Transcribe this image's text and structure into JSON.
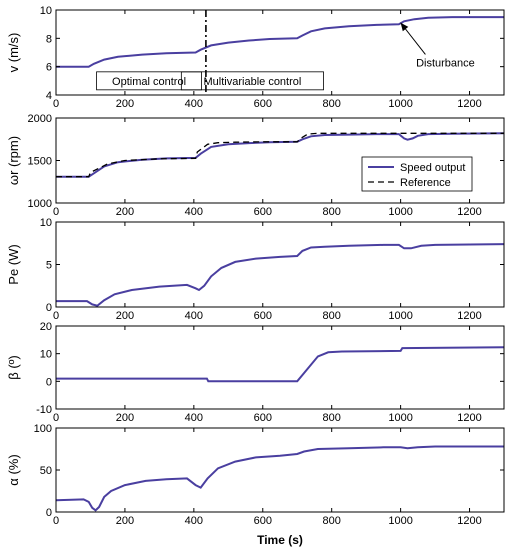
{
  "colors": {
    "series": "#4a3fa0",
    "reference": "#000000",
    "axis": "#000000"
  },
  "xlabel": "Time (s)",
  "chart_data": [
    {
      "type": "line",
      "ylabel": "v (m/s)",
      "xlim": [
        0,
        1300
      ],
      "ylim": [
        4,
        10
      ],
      "xticks": [
        0,
        200,
        400,
        600,
        800,
        1000,
        1200
      ],
      "yticks": [
        4,
        6,
        8,
        10
      ],
      "series": [
        {
          "x": [
            0,
            95,
            110,
            140,
            180,
            250,
            320,
            405,
            420,
            450,
            500,
            560,
            620,
            700,
            715,
            740,
            780,
            850,
            930,
            995,
            1010,
            1040,
            1080,
            1150,
            1300
          ],
          "y": [
            6.0,
            6.0,
            6.2,
            6.5,
            6.7,
            6.85,
            6.95,
            7.0,
            7.2,
            7.5,
            7.7,
            7.85,
            7.95,
            8.0,
            8.2,
            8.5,
            8.7,
            8.85,
            8.95,
            9.0,
            9.2,
            9.35,
            9.45,
            9.5,
            9.5
          ]
        }
      ],
      "vline_x": 435,
      "annotations": [
        {
          "text": "Optimal control",
          "x": 270,
          "y": 5.0,
          "boxed": true
        },
        {
          "text": "Multivariable control",
          "x": 570,
          "y": 5.0,
          "boxed": true
        },
        {
          "text": "Disturbance",
          "x": 1130,
          "y": 6.3,
          "boxed": false,
          "arrow_to": [
            1000,
            9.1
          ]
        }
      ]
    },
    {
      "type": "line",
      "ylabel": "ωr (rpm)",
      "xlim": [
        0,
        1300
      ],
      "ylim": [
        1000,
        2000
      ],
      "xticks": [
        0,
        200,
        400,
        600,
        800,
        1000,
        1200
      ],
      "yticks": [
        1000,
        1500,
        2000
      ],
      "legend": [
        "Speed output",
        "Reference"
      ],
      "legend_placement": "right",
      "series": [
        {
          "name": "Speed output",
          "x": [
            0,
            95,
            110,
            140,
            180,
            250,
            320,
            405,
            420,
            450,
            500,
            560,
            620,
            700,
            715,
            740,
            780,
            850,
            930,
            995,
            1010,
            1020,
            1035,
            1050,
            1080,
            1150,
            1300
          ],
          "y": [
            1310,
            1310,
            1350,
            1430,
            1480,
            1510,
            1525,
            1530,
            1580,
            1660,
            1690,
            1705,
            1715,
            1720,
            1750,
            1785,
            1800,
            1805,
            1810,
            1810,
            1760,
            1745,
            1760,
            1790,
            1810,
            1815,
            1820
          ]
        },
        {
          "name": "Reference",
          "x": [
            0,
            95,
            100,
            150,
            200,
            300,
            405,
            410,
            440,
            470,
            520,
            600,
            700,
            710,
            730,
            760,
            1300
          ],
          "y": [
            1310,
            1310,
            1360,
            1460,
            1500,
            1520,
            1525,
            1600,
            1690,
            1710,
            1715,
            1720,
            1720,
            1760,
            1810,
            1820,
            1820
          ]
        }
      ]
    },
    {
      "type": "line",
      "ylabel": "Pe (W)",
      "xlim": [
        0,
        1300
      ],
      "ylim": [
        0,
        10
      ],
      "xticks": [
        0,
        200,
        400,
        600,
        800,
        1000,
        1200
      ],
      "yticks": [
        0,
        5,
        10
      ],
      "series": [
        {
          "x": [
            0,
            90,
            105,
            120,
            140,
            170,
            220,
            300,
            380,
            405,
            415,
            430,
            450,
            480,
            520,
            580,
            650,
            700,
            715,
            740,
            780,
            850,
            950,
            995,
            1010,
            1030,
            1060,
            1100,
            1300
          ],
          "y": [
            0.7,
            0.7,
            0.3,
            0.15,
            0.8,
            1.5,
            2.0,
            2.4,
            2.6,
            2.2,
            2.0,
            2.5,
            3.6,
            4.6,
            5.3,
            5.7,
            5.9,
            6.0,
            6.6,
            7.0,
            7.1,
            7.2,
            7.3,
            7.3,
            6.9,
            6.9,
            7.2,
            7.3,
            7.4
          ]
        }
      ]
    },
    {
      "type": "line",
      "ylabel": "β (º)",
      "xlim": [
        0,
        1300
      ],
      "ylim": [
        -10,
        20
      ],
      "xticks": [
        0,
        200,
        400,
        600,
        800,
        1000,
        1200
      ],
      "yticks": [
        -10,
        0,
        10,
        20
      ],
      "series": [
        {
          "x": [
            0,
            438,
            442,
            700,
            720,
            760,
            790,
            830,
            1000,
            1005,
            1300
          ],
          "y": [
            1.0,
            1.0,
            0.0,
            0.0,
            3.0,
            9.0,
            10.5,
            10.8,
            11.0,
            12.0,
            12.3
          ]
        }
      ]
    },
    {
      "type": "line",
      "ylabel": "α (%)",
      "xlim": [
        0,
        1300
      ],
      "ylim": [
        0,
        100
      ],
      "xticks": [
        0,
        200,
        400,
        600,
        800,
        1000,
        1200
      ],
      "yticks": [
        0,
        50,
        100
      ],
      "series": [
        {
          "x": [
            0,
            80,
            95,
            105,
            115,
            125,
            140,
            160,
            200,
            260,
            320,
            380,
            405,
            420,
            440,
            470,
            520,
            580,
            650,
            700,
            720,
            760,
            850,
            950,
            1000,
            1020,
            1050,
            1100,
            1300
          ],
          "y": [
            14,
            15,
            12,
            5,
            2,
            6,
            18,
            25,
            32,
            37,
            39,
            40,
            32,
            29,
            40,
            52,
            60,
            65,
            67,
            69,
            72,
            75,
            76,
            77,
            77,
            76,
            77,
            78,
            78
          ]
        }
      ]
    }
  ]
}
